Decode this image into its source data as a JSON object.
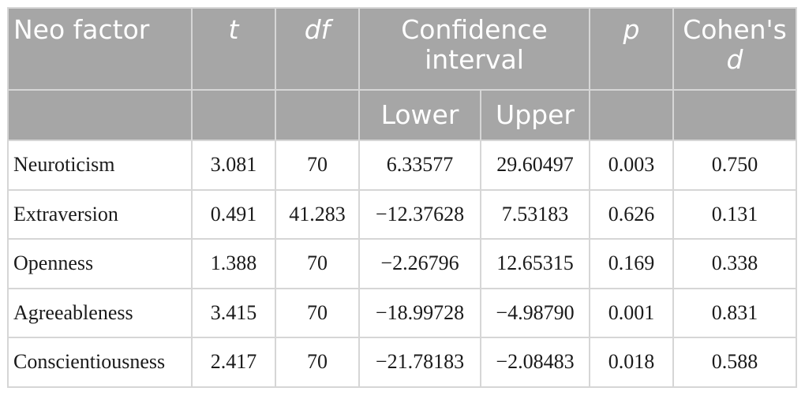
{
  "table": {
    "headers": {
      "factor": "Neo factor",
      "t": "t",
      "df": "df",
      "ci": "Confidence interval",
      "p": "p",
      "cohens_d_prefix": "Cohen's",
      "cohens_d_symbol": "d",
      "lower": "Lower",
      "upper": "Upper"
    },
    "rows": [
      {
        "factor": "Neuroticism",
        "t": "3.081",
        "df": "70",
        "lower": "6.33577",
        "upper": "29.60497",
        "p": "0.003",
        "d": "0.750"
      },
      {
        "factor": "Extraversion",
        "t": "0.491",
        "df": "41.283",
        "lower": "−12.37628",
        "upper": "7.53183",
        "p": "0.626",
        "d": "0.131"
      },
      {
        "factor": "Openness",
        "t": "1.388",
        "df": "70",
        "lower": "−2.26796",
        "upper": "12.65315",
        "p": "0.169",
        "d": "0.338"
      },
      {
        "factor": "Agreeableness",
        "t": "3.415",
        "df": "70",
        "lower": "−18.99728",
        "upper": "−4.98790",
        "p": "0.001",
        "d": "0.831"
      },
      {
        "factor": "Conscientiousness",
        "t": "2.417",
        "df": "70",
        "lower": "−21.78183",
        "upper": "−2.08483",
        "p": "0.018",
        "d": "0.588"
      }
    ]
  }
}
